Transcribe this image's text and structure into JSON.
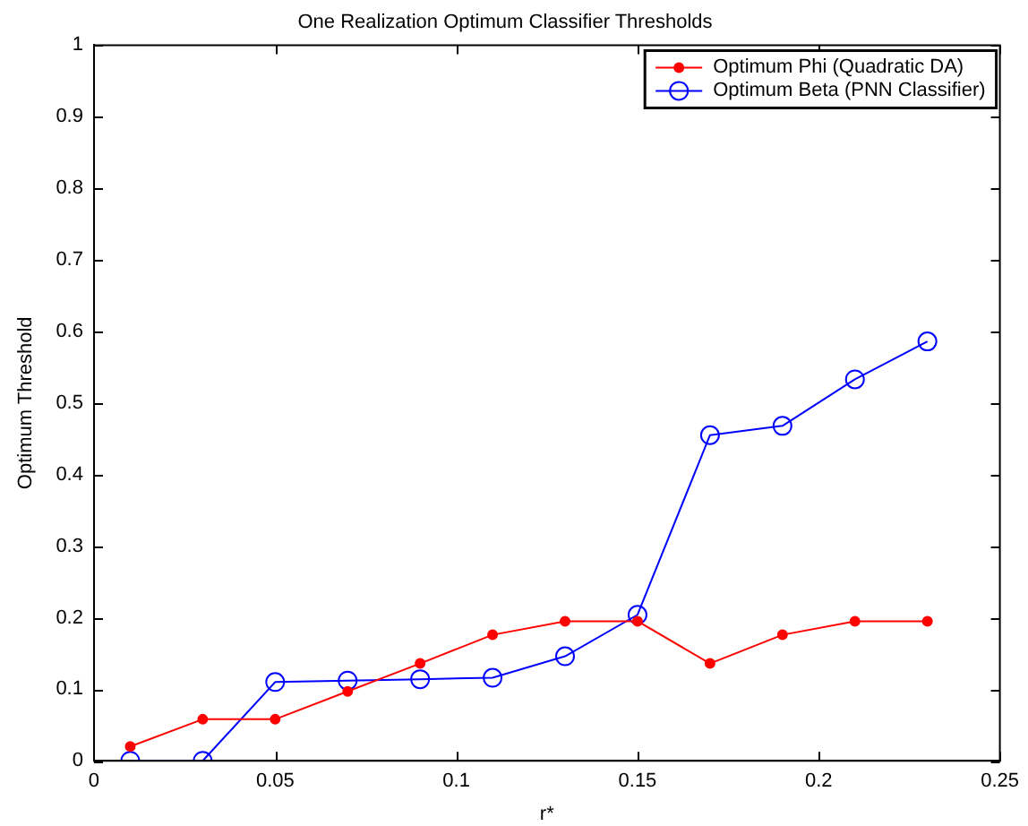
{
  "chart_data": {
    "type": "line",
    "title": "One Realization Optimum Classifier Thresholds",
    "xlabel": "r*",
    "ylabel": "Optimum Threshold",
    "x": [
      0.01,
      0.03,
      0.05,
      0.07,
      0.09,
      0.11,
      0.13,
      0.15,
      0.17,
      0.19,
      0.21,
      0.23
    ],
    "series": [
      {
        "name": "Optimum Phi (Quadratic DA)",
        "color": "#ff0000",
        "values": [
          0.02,
          0.058,
          0.058,
          0.097,
          0.136,
          0.176,
          0.195,
          0.195,
          0.136,
          0.176,
          0.195,
          0.195
        ]
      },
      {
        "name": "Optimum Beta (PNN Classifier)",
        "color": "#0000ff",
        "values": [
          0,
          0,
          0.11,
          0.112,
          0.114,
          0.116,
          0.146,
          0.204,
          0.455,
          0.468,
          0.533,
          0.586
        ]
      }
    ],
    "xlim": [
      0,
      0.25
    ],
    "xticks": [
      0,
      0.05,
      0.1,
      0.15,
      0.2,
      0.25
    ],
    "ylim": [
      0,
      1
    ],
    "yticks": [
      0,
      0.1,
      0.2,
      0.3,
      0.4,
      0.5,
      0.6,
      0.7,
      0.8,
      0.9,
      1
    ],
    "grid": false,
    "legend": "top right",
    "marker": "circle",
    "line_style": "solid"
  }
}
